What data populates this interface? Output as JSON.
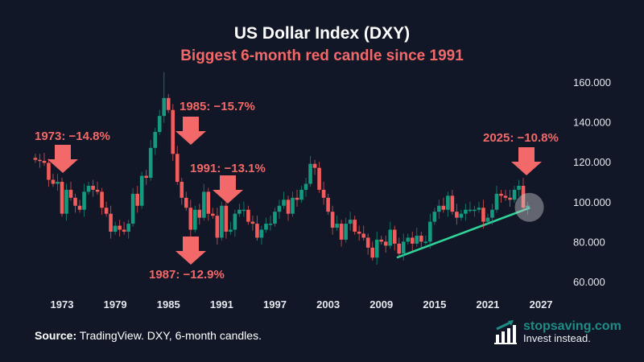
{
  "header": {
    "title": "US Dollar Index (DXY)",
    "subtitle": "Biggest 6-month red candle since 1991"
  },
  "chart_data": {
    "type": "candlestick",
    "title": "US Dollar Index (DXY)",
    "subtitle": "Biggest 6-month red candle since 1991",
    "interval": "6-month",
    "x_ticks": [
      "1973",
      "1979",
      "1985",
      "1991",
      "1997",
      "2003",
      "2009",
      "2015",
      "2021",
      "2027"
    ],
    "y_ticks": [
      "60.000",
      "80.000",
      "100.000",
      "120.000",
      "140.000",
      "160.000"
    ],
    "ylim": [
      60,
      165
    ],
    "xlim": [
      1969.5,
      2028.5
    ],
    "y_axis_side": "right",
    "grid": false,
    "colors": {
      "up": "#159a80",
      "down": "#f25c5c",
      "background": "#111726",
      "trendline": "#2fd39a",
      "annotation": "#f36868"
    },
    "first_open": 122,
    "periods": [
      "1970H1",
      "1970H2",
      "1971H1",
      "1971H2",
      "1972H1",
      "1972H2",
      "1973H1",
      "1973H2",
      "1974H1",
      "1974H2",
      "1975H1",
      "1975H2",
      "1976H1",
      "1976H2",
      "1977H1",
      "1977H2",
      "1978H1",
      "1978H2",
      "1979H1",
      "1979H2",
      "1980H1",
      "1980H2",
      "1981H1",
      "1981H2",
      "1982H1",
      "1982H2",
      "1983H1",
      "1983H2",
      "1984H1",
      "1984H2",
      "1985H1",
      "1985H2",
      "1986H1",
      "1986H2",
      "1987H1",
      "1987H2",
      "1988H1",
      "1988H2",
      "1989H1",
      "1989H2",
      "1990H1",
      "1990H2",
      "1991H1",
      "1991H2",
      "1992H1",
      "1992H2",
      "1993H1",
      "1993H2",
      "1994H1",
      "1994H2",
      "1995H1",
      "1995H2",
      "1996H1",
      "1996H2",
      "1997H1",
      "1997H2",
      "1998H1",
      "1998H2",
      "1999H1",
      "1999H2",
      "2000H1",
      "2000H2",
      "2001H1",
      "2001H2",
      "2002H1",
      "2002H2",
      "2003H1",
      "2003H2",
      "2004H1",
      "2004H2",
      "2005H1",
      "2005H2",
      "2006H1",
      "2006H2",
      "2007H1",
      "2007H2",
      "2008H1",
      "2008H2",
      "2009H1",
      "2009H2",
      "2010H1",
      "2010H2",
      "2011H1",
      "2011H2",
      "2012H1",
      "2012H2",
      "2013H1",
      "2013H2",
      "2014H1",
      "2014H2",
      "2015H1",
      "2015H2",
      "2016H1",
      "2016H2",
      "2017H1",
      "2017H2",
      "2018H1",
      "2018H2",
      "2019H1",
      "2019H2",
      "2020H1",
      "2020H2",
      "2021H1",
      "2021H2",
      "2022H1",
      "2022H2",
      "2023H1",
      "2023H2",
      "2024H1",
      "2024H2",
      "2025H1",
      "2025H2"
    ],
    "closes": [
      121,
      120.5,
      119.5,
      111,
      109,
      110,
      94,
      106,
      102,
      98,
      96,
      105,
      108,
      106,
      105,
      97,
      94,
      85,
      88,
      86,
      85,
      89,
      104,
      98,
      113,
      112,
      127,
      135,
      143,
      152,
      146,
      124,
      110,
      102,
      97,
      86,
      96,
      92,
      105,
      94,
      93,
      82,
      98,
      85,
      86,
      94,
      96,
      96,
      90,
      89,
      82,
      86,
      89,
      89,
      95,
      98,
      101,
      94,
      102,
      101,
      106,
      109,
      119,
      117,
      106,
      102,
      95,
      87,
      89,
      81,
      89,
      91,
      85,
      84,
      82,
      77,
      72,
      81,
      80,
      78,
      86,
      79,
      74,
      80,
      82,
      79,
      83,
      80,
      80,
      90,
      95,
      98,
      96,
      103,
      95,
      92,
      94,
      96,
      96,
      96,
      97,
      90,
      92,
      96,
      104,
      103,
      102,
      101,
      106,
      108,
      97,
      98
    ],
    "notable_high": {
      "period": "1984H2",
      "value": 165
    },
    "trendline": {
      "from": [
        2010.75,
        72
      ],
      "to": [
        2025.75,
        97
      ]
    },
    "highlight": {
      "period": "2025H2",
      "value": 98
    },
    "annotations": [
      {
        "label": "1973: −14.8%",
        "period": "1973H1"
      },
      {
        "label": "1985: −15.7%",
        "period": "1985H2"
      },
      {
        "label": "1987: −12.9%",
        "period": "1987H2"
      },
      {
        "label": "1991: −13.1%",
        "period": "1991H2"
      },
      {
        "label": "2025: −10.8%",
        "period": "2025H1"
      }
    ]
  },
  "footer": {
    "source_label": "Source:",
    "source_text": " TradingView. DXY, 6-month candles.",
    "brand": "stopsaving.com",
    "tagline": "Invest instead.",
    "logo_icon": "bar-chart-arrow-icon"
  }
}
